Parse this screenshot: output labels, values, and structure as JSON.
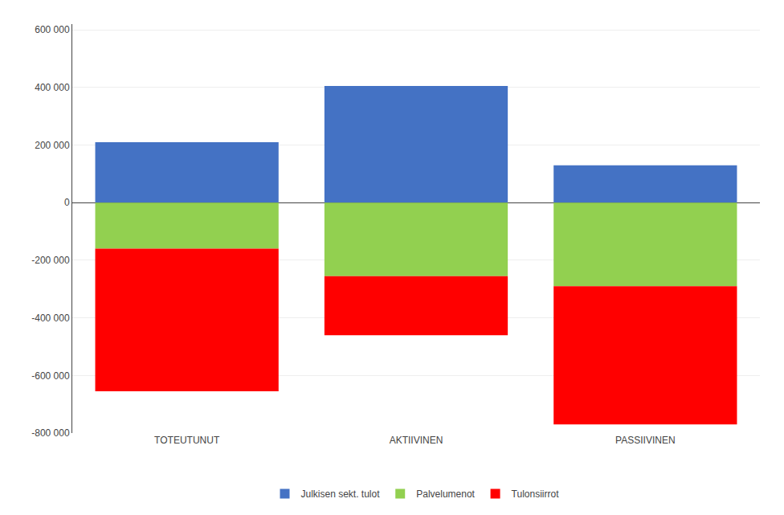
{
  "chart_data": {
    "type": "bar",
    "stacked": true,
    "categories": [
      "TOTEUTUNUT",
      "AKTIIVINEN",
      "PASSIIVINEN"
    ],
    "series": [
      {
        "name": "Julkisen sekt. tulot",
        "color": "#4472C4",
        "values": [
          210000,
          405000,
          130000
        ]
      },
      {
        "name": "Palvelumenot",
        "color": "#92D050",
        "values": [
          -160000,
          -255000,
          -290000
        ]
      },
      {
        "name": "Tulonsiirrot",
        "color": "#FF0000",
        "values": [
          -495000,
          -205000,
          -480000
        ]
      }
    ],
    "ylim": [
      -800000,
      620000
    ],
    "yticks": [
      {
        "value": -800000,
        "label": "-800 000"
      },
      {
        "value": -600000,
        "label": "-600 000"
      },
      {
        "value": -400000,
        "label": "-400 000"
      },
      {
        "value": -200000,
        "label": "-200 000"
      },
      0,
      {
        "value": 200000,
        "label": "200 000"
      },
      {
        "value": 400000,
        "label": "400 000"
      },
      {
        "value": 600000,
        "label": "600 000"
      }
    ],
    "grid": true,
    "legend": "bottom"
  }
}
